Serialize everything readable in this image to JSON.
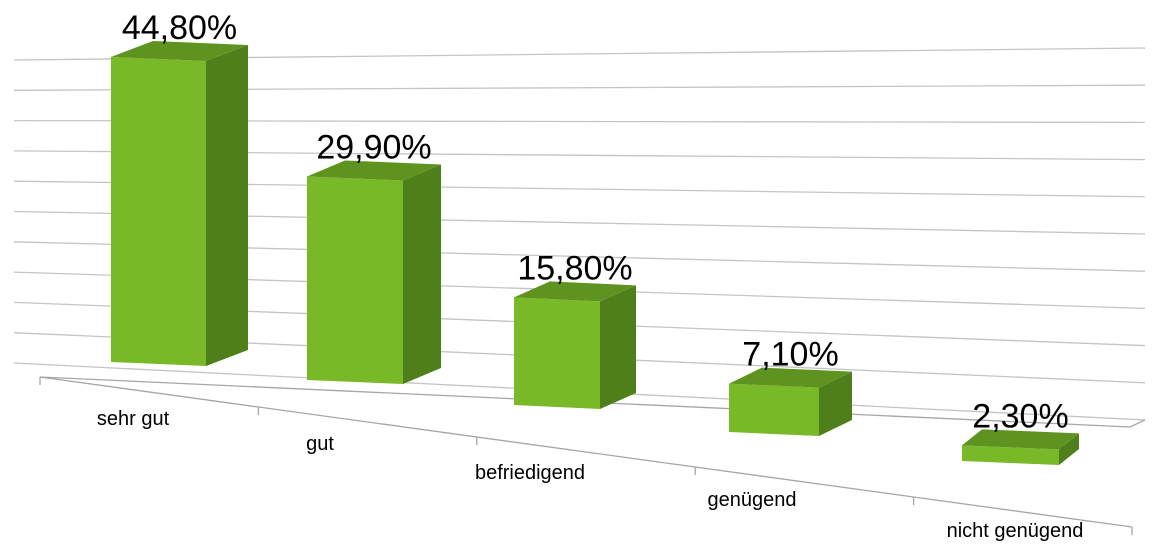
{
  "chart_data": {
    "type": "bar",
    "style": "3d-perspective",
    "categories": [
      "sehr gut",
      "gut",
      "befriedigend",
      "genügend",
      "nicht genügend"
    ],
    "values": [
      44.8,
      29.9,
      15.8,
      7.1,
      2.3
    ],
    "value_labels": [
      "44,80%",
      "29,90%",
      "15,80%",
      "7,10%",
      "2,30%"
    ],
    "title": "",
    "xlabel": "",
    "ylabel": "",
    "ylim": [
      0,
      50
    ],
    "grid": true,
    "legend": "none",
    "colors": {
      "front": "#79b928",
      "side": "#4f7f1a",
      "top": "#5e931f",
      "grid": "#c4c4c4",
      "axis": "#a6a6a6"
    }
  }
}
